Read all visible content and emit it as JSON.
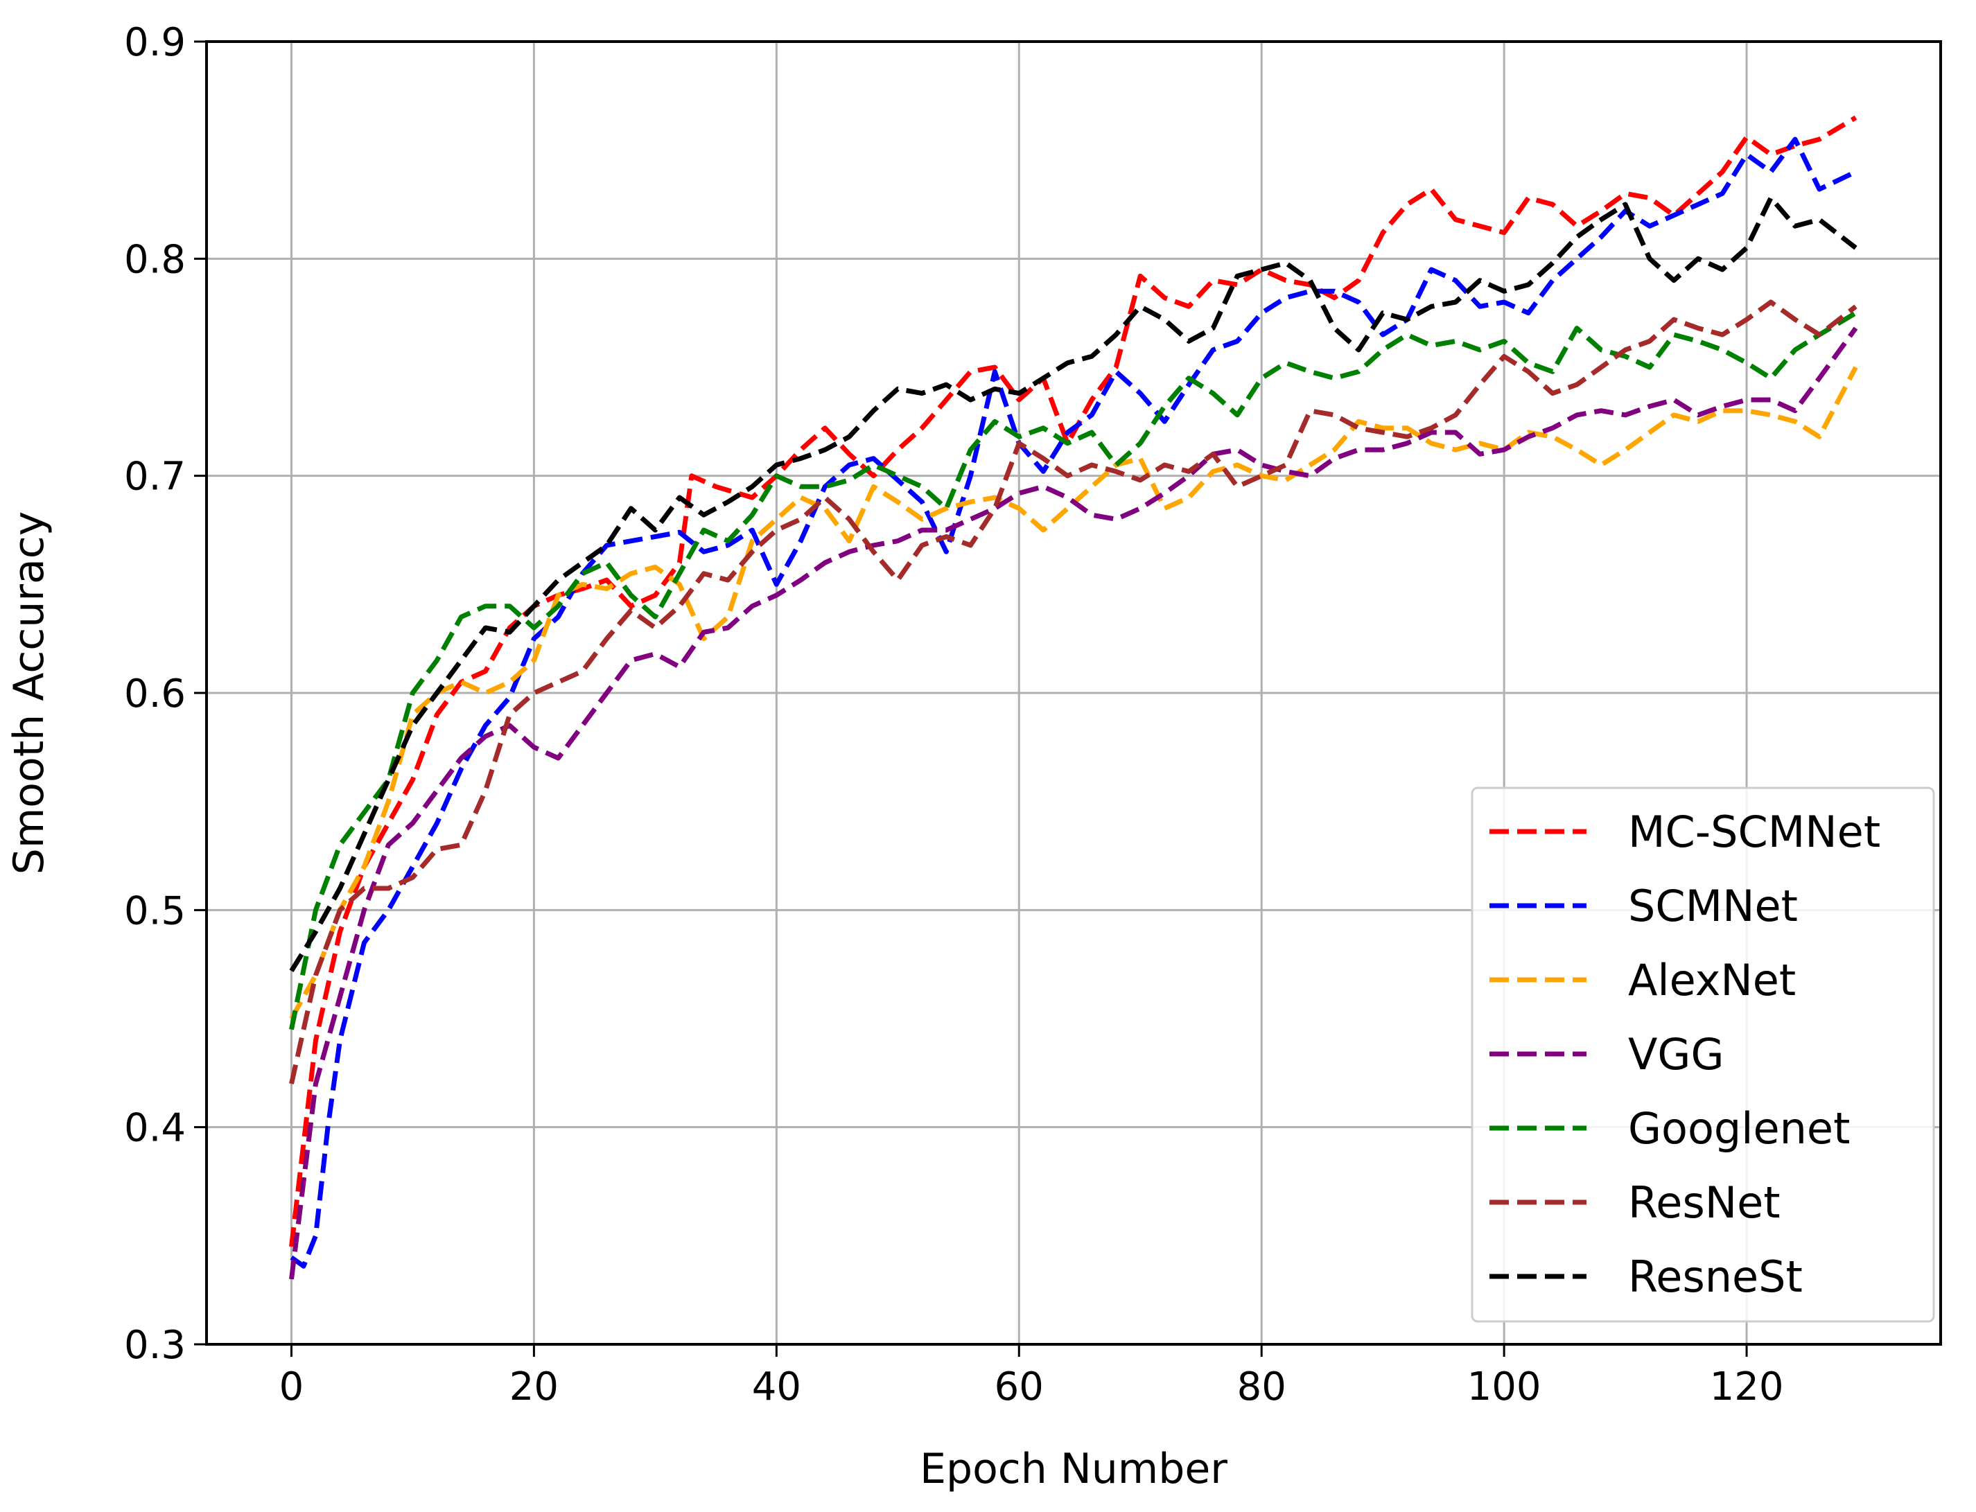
{
  "chart_data": {
    "type": "line",
    "title": "",
    "xlabel": "Epoch Number",
    "ylabel": "Smooth Accuracy",
    "xlim": [
      -7,
      136
    ],
    "ylim": [
      0.3,
      0.9
    ],
    "xticks": [
      0,
      20,
      40,
      60,
      80,
      100,
      120
    ],
    "yticks": [
      0.3,
      0.4,
      0.5,
      0.6,
      0.7,
      0.8,
      0.9
    ],
    "xtick_labels": [
      "0",
      "20",
      "40",
      "60",
      "80",
      "100",
      "120"
    ],
    "ytick_labels": [
      "0.3",
      "0.4",
      "0.5",
      "0.6",
      "0.7",
      "0.8",
      "0.9"
    ],
    "grid": true,
    "legend_position": "lower-right",
    "line_style": "dashed",
    "series": [
      {
        "name": "MC-SCMNet",
        "color": "#ff0000",
        "x": [
          0,
          2,
          4,
          6,
          8,
          10,
          12,
          14,
          16,
          18,
          20,
          22,
          24,
          26,
          28,
          30,
          32,
          33,
          35,
          38,
          40,
          42,
          44,
          46,
          48,
          50,
          52,
          54,
          56,
          58,
          60,
          62,
          64,
          66,
          68,
          70,
          72,
          74,
          76,
          78,
          80,
          82,
          84,
          86,
          88,
          90,
          92,
          94,
          96,
          98,
          100,
          102,
          104,
          106,
          108,
          110,
          112,
          114,
          116,
          118,
          120,
          122,
          124,
          126,
          129
        ],
        "y": [
          0.345,
          0.44,
          0.49,
          0.52,
          0.54,
          0.56,
          0.59,
          0.605,
          0.61,
          0.63,
          0.64,
          0.645,
          0.648,
          0.652,
          0.64,
          0.645,
          0.66,
          0.7,
          0.695,
          0.69,
          0.7,
          0.712,
          0.722,
          0.71,
          0.7,
          0.712,
          0.722,
          0.735,
          0.748,
          0.75,
          0.735,
          0.745,
          0.715,
          0.735,
          0.75,
          0.792,
          0.782,
          0.778,
          0.79,
          0.788,
          0.795,
          0.79,
          0.788,
          0.782,
          0.79,
          0.812,
          0.825,
          0.832,
          0.818,
          0.815,
          0.812,
          0.828,
          0.825,
          0.815,
          0.822,
          0.83,
          0.828,
          0.82,
          0.83,
          0.84,
          0.856,
          0.848,
          0.852,
          0.855,
          0.865
        ]
      },
      {
        "name": "SCMNet",
        "color": "#0000ff",
        "x": [
          0,
          1,
          2,
          3,
          4,
          6,
          8,
          10,
          12,
          14,
          16,
          18,
          20,
          22,
          24,
          26,
          28,
          30,
          32,
          34,
          36,
          38,
          40,
          42,
          44,
          46,
          48,
          50,
          52,
          54,
          56,
          58,
          60,
          62,
          64,
          66,
          68,
          70,
          72,
          74,
          76,
          78,
          80,
          82,
          84,
          86,
          88,
          90,
          92,
          94,
          96,
          98,
          100,
          102,
          104,
          106,
          108,
          110,
          112,
          114,
          116,
          118,
          120,
          122,
          124,
          126,
          129
        ],
        "y": [
          0.34,
          0.336,
          0.35,
          0.4,
          0.44,
          0.485,
          0.5,
          0.52,
          0.54,
          0.565,
          0.585,
          0.598,
          0.625,
          0.635,
          0.655,
          0.668,
          0.67,
          0.672,
          0.674,
          0.665,
          0.668,
          0.675,
          0.65,
          0.67,
          0.695,
          0.705,
          0.708,
          0.698,
          0.688,
          0.665,
          0.7,
          0.748,
          0.715,
          0.702,
          0.72,
          0.728,
          0.748,
          0.738,
          0.725,
          0.742,
          0.758,
          0.762,
          0.775,
          0.782,
          0.785,
          0.785,
          0.78,
          0.765,
          0.772,
          0.795,
          0.79,
          0.778,
          0.78,
          0.775,
          0.79,
          0.8,
          0.81,
          0.822,
          0.815,
          0.82,
          0.825,
          0.83,
          0.848,
          0.84,
          0.855,
          0.832,
          0.84
        ]
      },
      {
        "name": "AlexNet",
        "color": "#ffa500",
        "x": [
          0,
          2,
          4,
          6,
          8,
          10,
          12,
          14,
          16,
          18,
          20,
          22,
          24,
          26,
          28,
          30,
          32,
          34,
          36,
          38,
          40,
          42,
          44,
          46,
          48,
          50,
          52,
          54,
          56,
          58,
          60,
          62,
          64,
          66,
          68,
          70,
          72,
          74,
          76,
          78,
          80,
          82,
          84,
          86,
          88,
          90,
          92,
          94,
          96,
          98,
          100,
          102,
          104,
          106,
          108,
          110,
          112,
          114,
          116,
          118,
          120,
          122,
          124,
          126,
          129
        ],
        "y": [
          0.45,
          0.47,
          0.5,
          0.52,
          0.55,
          0.59,
          0.6,
          0.605,
          0.6,
          0.605,
          0.615,
          0.645,
          0.65,
          0.648,
          0.655,
          0.658,
          0.65,
          0.625,
          0.635,
          0.67,
          0.68,
          0.69,
          0.685,
          0.67,
          0.695,
          0.688,
          0.68,
          0.685,
          0.688,
          0.69,
          0.685,
          0.675,
          0.685,
          0.695,
          0.705,
          0.708,
          0.685,
          0.69,
          0.702,
          0.705,
          0.7,
          0.698,
          0.705,
          0.712,
          0.725,
          0.722,
          0.722,
          0.715,
          0.712,
          0.715,
          0.712,
          0.72,
          0.718,
          0.712,
          0.705,
          0.712,
          0.72,
          0.728,
          0.725,
          0.73,
          0.73,
          0.728,
          0.725,
          0.718,
          0.75
        ]
      },
      {
        "name": "VGG",
        "color": "#800080",
        "x": [
          0,
          2,
          4,
          6,
          8,
          10,
          12,
          14,
          16,
          18,
          20,
          22,
          24,
          26,
          28,
          30,
          32,
          34,
          36,
          38,
          40,
          42,
          44,
          46,
          48,
          50,
          52,
          54,
          56,
          58,
          60,
          62,
          64,
          66,
          68,
          70,
          72,
          74,
          76,
          78,
          80,
          82,
          84,
          86,
          88,
          90,
          92,
          94,
          96,
          98,
          100,
          102,
          104,
          106,
          108,
          110,
          112,
          114,
          116,
          118,
          120,
          122,
          124,
          126,
          129
        ],
        "y": [
          0.33,
          0.42,
          0.46,
          0.5,
          0.53,
          0.54,
          0.555,
          0.57,
          0.58,
          0.585,
          0.575,
          0.57,
          0.585,
          0.6,
          0.615,
          0.618,
          0.612,
          0.628,
          0.63,
          0.64,
          0.645,
          0.652,
          0.66,
          0.665,
          0.668,
          0.67,
          0.675,
          0.675,
          0.68,
          0.685,
          0.692,
          0.695,
          0.69,
          0.682,
          0.68,
          0.685,
          0.692,
          0.7,
          0.71,
          0.712,
          0.705,
          0.702,
          0.7,
          0.708,
          0.712,
          0.712,
          0.715,
          0.72,
          0.72,
          0.71,
          0.712,
          0.718,
          0.722,
          0.728,
          0.73,
          0.728,
          0.732,
          0.735,
          0.728,
          0.732,
          0.735,
          0.735,
          0.73,
          0.745,
          0.768
        ]
      },
      {
        "name": "Googlenet",
        "color": "#008000",
        "x": [
          0,
          2,
          4,
          6,
          8,
          10,
          12,
          14,
          16,
          18,
          20,
          22,
          24,
          26,
          28,
          30,
          32,
          34,
          36,
          38,
          40,
          42,
          44,
          46,
          48,
          50,
          52,
          54,
          56,
          58,
          60,
          62,
          64,
          66,
          68,
          70,
          72,
          74,
          76,
          78,
          80,
          82,
          84,
          86,
          88,
          90,
          92,
          94,
          96,
          98,
          100,
          102,
          104,
          106,
          108,
          110,
          112,
          114,
          116,
          118,
          120,
          122,
          124,
          126,
          129
        ],
        "y": [
          0.445,
          0.5,
          0.53,
          0.545,
          0.56,
          0.6,
          0.615,
          0.635,
          0.64,
          0.64,
          0.63,
          0.64,
          0.655,
          0.66,
          0.645,
          0.635,
          0.655,
          0.675,
          0.67,
          0.682,
          0.7,
          0.695,
          0.695,
          0.698,
          0.705,
          0.7,
          0.695,
          0.685,
          0.712,
          0.725,
          0.718,
          0.722,
          0.715,
          0.72,
          0.705,
          0.715,
          0.732,
          0.745,
          0.738,
          0.728,
          0.745,
          0.752,
          0.748,
          0.745,
          0.748,
          0.758,
          0.765,
          0.76,
          0.762,
          0.758,
          0.762,
          0.752,
          0.748,
          0.768,
          0.758,
          0.755,
          0.75,
          0.765,
          0.762,
          0.758,
          0.752,
          0.745,
          0.758,
          0.765,
          0.775
        ]
      },
      {
        "name": "ResNet",
        "color": "#a52a2a",
        "x": [
          0,
          2,
          4,
          6,
          8,
          10,
          12,
          14,
          16,
          18,
          20,
          22,
          24,
          26,
          28,
          30,
          32,
          34,
          36,
          38,
          40,
          42,
          44,
          46,
          48,
          50,
          52,
          54,
          56,
          58,
          60,
          62,
          64,
          66,
          68,
          70,
          72,
          74,
          76,
          78,
          80,
          82,
          84,
          86,
          88,
          90,
          92,
          94,
          96,
          98,
          100,
          102,
          104,
          106,
          108,
          110,
          112,
          114,
          116,
          118,
          120,
          122,
          124,
          126,
          129
        ],
        "y": [
          0.42,
          0.47,
          0.5,
          0.51,
          0.51,
          0.515,
          0.528,
          0.53,
          0.555,
          0.59,
          0.6,
          0.605,
          0.61,
          0.625,
          0.638,
          0.63,
          0.64,
          0.655,
          0.652,
          0.665,
          0.675,
          0.68,
          0.69,
          0.68,
          0.665,
          0.652,
          0.668,
          0.672,
          0.668,
          0.685,
          0.715,
          0.708,
          0.7,
          0.705,
          0.702,
          0.698,
          0.705,
          0.702,
          0.71,
          0.695,
          0.7,
          0.705,
          0.73,
          0.728,
          0.722,
          0.72,
          0.718,
          0.722,
          0.728,
          0.742,
          0.755,
          0.748,
          0.738,
          0.742,
          0.75,
          0.758,
          0.762,
          0.772,
          0.768,
          0.765,
          0.772,
          0.78,
          0.772,
          0.765,
          0.778
        ]
      },
      {
        "name": "ResneSt",
        "color": "#000000",
        "x": [
          0,
          2,
          4,
          6,
          8,
          10,
          12,
          14,
          16,
          18,
          20,
          22,
          24,
          26,
          28,
          30,
          32,
          34,
          36,
          38,
          40,
          42,
          44,
          46,
          48,
          50,
          52,
          54,
          56,
          58,
          60,
          62,
          64,
          66,
          68,
          70,
          72,
          74,
          76,
          78,
          80,
          82,
          84,
          86,
          88,
          90,
          92,
          94,
          96,
          98,
          100,
          102,
          104,
          106,
          108,
          110,
          112,
          114,
          116,
          118,
          120,
          122,
          124,
          126,
          129
        ],
        "y": [
          0.472,
          0.49,
          0.51,
          0.535,
          0.56,
          0.585,
          0.6,
          0.615,
          0.63,
          0.628,
          0.64,
          0.652,
          0.66,
          0.668,
          0.685,
          0.675,
          0.69,
          0.682,
          0.688,
          0.695,
          0.705,
          0.708,
          0.712,
          0.718,
          0.73,
          0.74,
          0.738,
          0.742,
          0.735,
          0.74,
          0.738,
          0.745,
          0.752,
          0.755,
          0.765,
          0.778,
          0.772,
          0.762,
          0.768,
          0.792,
          0.795,
          0.798,
          0.79,
          0.768,
          0.758,
          0.775,
          0.772,
          0.778,
          0.78,
          0.79,
          0.785,
          0.788,
          0.798,
          0.81,
          0.818,
          0.825,
          0.8,
          0.79,
          0.8,
          0.795,
          0.805,
          0.828,
          0.815,
          0.818,
          0.805
        ]
      }
    ]
  }
}
